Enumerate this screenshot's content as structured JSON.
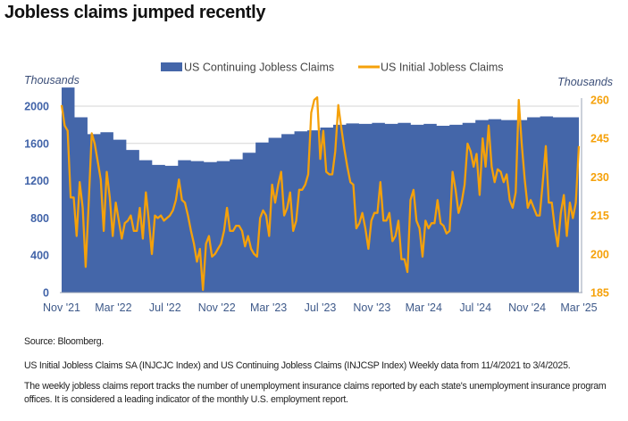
{
  "title": "Jobless claims jumped recently",
  "notes": {
    "source": "Source: Bloomberg.",
    "description": "US Initial Jobless Claims SA (INJCJC Index) and US Continuing Jobless Claims (INJCSP Index) Weekly data from 11/4/2021 to 3/4/2025.",
    "explanation": "The weekly jobless claims report tracks the number of unemployment insurance claims reported by each state's unemployment insurance program offices. It is considered a leading indicator of the monthly U.S. employment report."
  },
  "chart_data": {
    "type": "area+line",
    "title": "",
    "date_range": [
      "11/4/2021",
      "3/4/2025"
    ],
    "x_ticks": [
      "Nov '21",
      "Mar '22",
      "Jul '22",
      "Nov '22",
      "Mar '23",
      "Jul '23",
      "Nov '23",
      "Mar '24",
      "Jul '24",
      "Nov '24",
      "Mar '25"
    ],
    "y_left": {
      "label": "Thousands",
      "ticks": [
        0,
        400,
        800,
        1200,
        1600,
        2000
      ],
      "range": [
        0,
        2070
      ],
      "color": "#4163a8"
    },
    "y_right": {
      "label": "Thousands",
      "ticks": [
        185,
        200,
        215,
        230,
        245,
        260
      ],
      "range": [
        185,
        262
      ],
      "color": "#f5a10a"
    },
    "grid": "horizontal",
    "legend_placement": "top",
    "series": [
      {
        "name": "US Continuing Jobless Claims",
        "kind": "area",
        "axis": "left",
        "color": "#4466a9",
        "frequency": "monthly (approx.)",
        "values": [
          2200,
          1880,
          1700,
          1720,
          1640,
          1530,
          1420,
          1370,
          1360,
          1420,
          1410,
          1400,
          1410,
          1430,
          1500,
          1610,
          1660,
          1700,
          1730,
          1740,
          1770,
          1800,
          1815,
          1810,
          1820,
          1810,
          1820,
          1800,
          1810,
          1790,
          1800,
          1820,
          1850,
          1860,
          1850,
          1850,
          1880,
          1890,
          1880,
          1880,
          1870
        ]
      },
      {
        "name": "US Initial Jobless Claims",
        "kind": "line",
        "axis": "right",
        "color": "#f5a10a",
        "frequency": "weekly",
        "values": [
          258,
          250,
          248,
          222,
          222,
          207,
          228,
          218,
          195,
          220,
          247,
          243,
          236,
          229,
          209,
          232,
          222,
          207,
          220,
          213,
          206,
          212,
          213,
          215,
          209,
          209,
          218,
          206,
          224,
          213,
          200,
          215,
          214,
          215,
          213,
          214,
          215,
          217,
          221,
          229,
          221,
          220,
          215,
          209,
          204,
          197,
          202,
          186,
          204,
          207,
          199,
          200,
          202,
          204,
          209,
          218,
          209,
          209,
          211,
          211,
          209,
          203,
          207,
          202,
          200,
          199,
          214,
          217,
          215,
          207,
          227,
          220,
          227,
          232,
          215,
          218,
          224,
          209,
          213,
          225,
          225,
          227,
          231,
          255,
          260,
          261,
          237,
          248,
          232,
          231,
          231,
          240,
          258,
          249,
          241,
          234,
          228,
          227,
          210,
          212,
          216,
          210,
          202,
          213,
          216,
          216,
          228,
          213,
          213,
          216,
          205,
          207,
          213,
          198,
          198,
          193,
          221,
          225,
          213,
          210,
          199,
          213,
          210,
          212,
          212,
          221,
          212,
          211,
          208,
          209,
          232,
          225,
          216,
          220,
          227,
          243,
          240,
          234,
          239,
          223,
          245,
          234,
          250,
          234,
          228,
          233,
          232,
          228,
          231,
          221,
          218,
          224,
          260,
          243,
          229,
          218,
          221,
          218,
          215,
          215,
          228,
          242,
          220,
          220,
          210,
          203,
          216,
          223,
          207,
          220,
          214,
          220,
          242
        ]
      }
    ]
  }
}
